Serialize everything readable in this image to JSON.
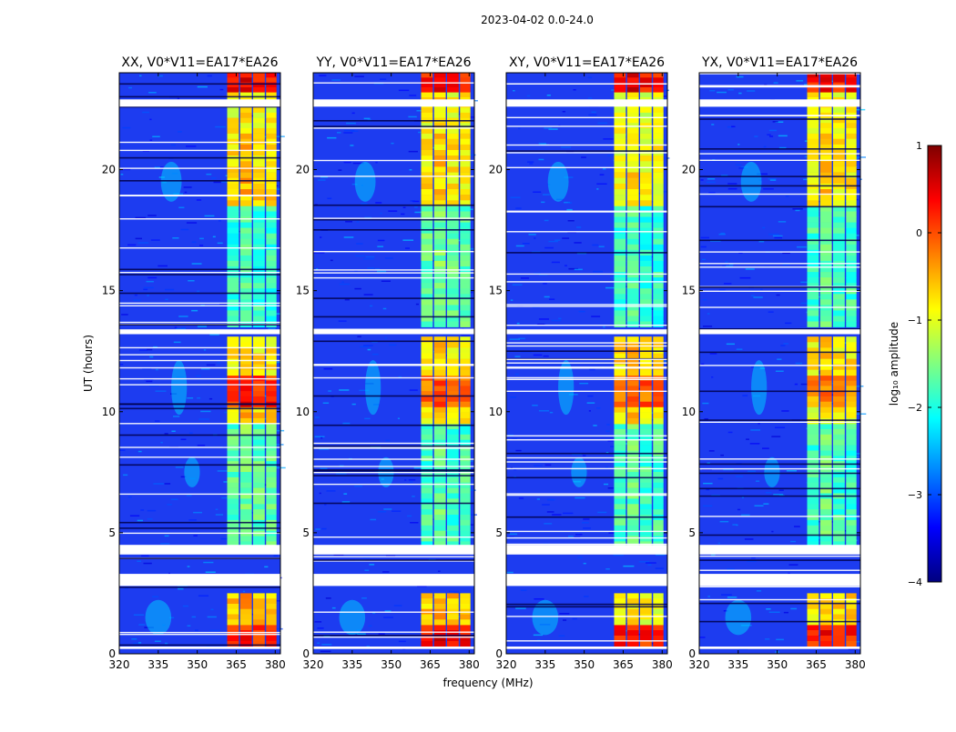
{
  "figure": {
    "suptitle": "2023-04-02 0.0-24.0"
  },
  "chart_data": [
    {
      "type": "heatmap",
      "title": "XX, V0*V11=EA17*EA26",
      "xlabel": "",
      "ylabel": "UT (hours)",
      "xlim": [
        320,
        382
      ],
      "ylim": [
        0,
        24
      ],
      "xticks": [
        320,
        335,
        350,
        365,
        380
      ],
      "yticks": [
        0,
        5,
        10,
        15,
        20
      ],
      "xtick_labels": [
        "320",
        "335",
        "350",
        "365",
        "380"
      ],
      "ytick_labels": [
        "0",
        "5",
        "10",
        "15",
        "20"
      ],
      "bright_bands_mhz": [
        [
          361.5,
          366
        ],
        [
          366.5,
          371
        ],
        [
          371.5,
          376
        ],
        [
          376.5,
          380.5
        ]
      ],
      "band_amplitude_log10": [
        {
          "from": 0.3,
          "to": 1.2,
          "value": 0.1
        },
        {
          "from": 1.2,
          "to": 2.5,
          "value": -0.6
        },
        {
          "from": 4.2,
          "to": 9.5,
          "value": -1.7
        },
        {
          "from": 9.5,
          "to": 10.2,
          "value": -0.7
        },
        {
          "from": 10.2,
          "to": 11.5,
          "value": 0.2
        },
        {
          "from": 11.5,
          "to": 13.1,
          "value": -0.8
        },
        {
          "from": 13.5,
          "to": 18.5,
          "value": -1.9
        },
        {
          "from": 18.5,
          "to": 21.5,
          "value": -0.7
        },
        {
          "from": 21.5,
          "to": 23.2,
          "value": -0.9
        },
        {
          "from": 23.2,
          "to": 24,
          "value": 0.3
        }
      ],
      "flagged_gaps_hours": [
        [
          0.2,
          0.3
        ],
        [
          2.8,
          3.3
        ],
        [
          4.1,
          4.5
        ],
        [
          13.2,
          13.4
        ],
        [
          22.6,
          22.9
        ]
      ]
    },
    {
      "type": "heatmap",
      "title": "YY, V0*V11=EA17*EA26",
      "xlabel": "frequency (MHz)",
      "ylabel": "",
      "xlim": [
        320,
        382
      ],
      "ylim": [
        0,
        24
      ],
      "xticks": [
        320,
        335,
        350,
        365,
        380
      ],
      "yticks": [
        0,
        5,
        10,
        15,
        20
      ],
      "xtick_labels": [
        "320",
        "335",
        "350",
        "365",
        "380"
      ],
      "ytick_labels": [
        "0",
        "5",
        "10",
        "15",
        "20"
      ],
      "bright_bands_mhz": [
        [
          361.5,
          366
        ],
        [
          366.5,
          371
        ],
        [
          371.5,
          376
        ],
        [
          376.5,
          380.5
        ]
      ],
      "band_amplitude_log10": [
        {
          "from": 0.3,
          "to": 1.2,
          "value": 0.3
        },
        {
          "from": 1.2,
          "to": 2.5,
          "value": -0.6
        },
        {
          "from": 4.2,
          "to": 9.5,
          "value": -1.8
        },
        {
          "from": 9.5,
          "to": 10.2,
          "value": -0.8
        },
        {
          "from": 10.2,
          "to": 11.5,
          "value": -0.2
        },
        {
          "from": 11.5,
          "to": 13.1,
          "value": -0.8
        },
        {
          "from": 13.5,
          "to": 18.5,
          "value": -1.7
        },
        {
          "from": 18.5,
          "to": 21.5,
          "value": -0.8
        },
        {
          "from": 21.5,
          "to": 23.2,
          "value": -0.9
        },
        {
          "from": 23.2,
          "to": 24,
          "value": 0.3
        }
      ],
      "flagged_gaps_hours": [
        [
          0.2,
          0.3
        ],
        [
          2.8,
          3.3
        ],
        [
          4.1,
          4.5
        ],
        [
          13.2,
          13.4
        ],
        [
          22.6,
          22.9
        ]
      ]
    },
    {
      "type": "heatmap",
      "title": "XY, V0*V11=EA17*EA26",
      "xlabel": "",
      "ylabel": "",
      "xlim": [
        320,
        382
      ],
      "ylim": [
        0,
        24
      ],
      "xticks": [
        320,
        335,
        350,
        365,
        380
      ],
      "yticks": [
        0,
        5,
        10,
        15,
        20
      ],
      "xtick_labels": [
        "320",
        "335",
        "350",
        "365",
        "380"
      ],
      "ytick_labels": [
        "0",
        "5",
        "10",
        "15",
        "20"
      ],
      "bright_bands_mhz": [
        [
          361.5,
          366
        ],
        [
          366.5,
          371
        ],
        [
          371.5,
          376
        ],
        [
          376.5,
          380.5
        ]
      ],
      "band_amplitude_log10": [
        {
          "from": 0.3,
          "to": 1.2,
          "value": 0.2
        },
        {
          "from": 1.2,
          "to": 2.5,
          "value": -0.9
        },
        {
          "from": 4.2,
          "to": 9.5,
          "value": -1.8
        },
        {
          "from": 9.5,
          "to": 10.2,
          "value": -0.8
        },
        {
          "from": 10.2,
          "to": 11.5,
          "value": -0.1
        },
        {
          "from": 11.5,
          "to": 13.1,
          "value": -0.7
        },
        {
          "from": 13.5,
          "to": 18.5,
          "value": -1.9
        },
        {
          "from": 18.5,
          "to": 21.5,
          "value": -0.9
        },
        {
          "from": 21.5,
          "to": 23.2,
          "value": -1.0
        },
        {
          "from": 23.2,
          "to": 24,
          "value": 0.3
        }
      ],
      "flagged_gaps_hours": [
        [
          0.2,
          0.3
        ],
        [
          2.8,
          3.3
        ],
        [
          4.1,
          4.5
        ],
        [
          13.2,
          13.4
        ],
        [
          22.6,
          22.9
        ]
      ]
    },
    {
      "type": "heatmap",
      "title": "YX, V0*V11=EA17*EA26",
      "xlabel": "",
      "ylabel": "",
      "xlim": [
        320,
        382
      ],
      "ylim": [
        0,
        24
      ],
      "xticks": [
        320,
        335,
        350,
        365,
        380
      ],
      "yticks": [
        0,
        5,
        10,
        15,
        20
      ],
      "xtick_labels": [
        "320",
        "335",
        "350",
        "365",
        "380"
      ],
      "ytick_labels": [
        "0",
        "5",
        "10",
        "15",
        "20"
      ],
      "bright_bands_mhz": [
        [
          361.5,
          366
        ],
        [
          366.5,
          371
        ],
        [
          371.5,
          376
        ],
        [
          376.5,
          380.5
        ]
      ],
      "band_amplitude_log10": [
        {
          "from": 0.3,
          "to": 1.2,
          "value": 0.2
        },
        {
          "from": 1.2,
          "to": 2.5,
          "value": -0.7
        },
        {
          "from": 4.2,
          "to": 9.5,
          "value": -1.8
        },
        {
          "from": 9.5,
          "to": 10.2,
          "value": -0.9
        },
        {
          "from": 10.2,
          "to": 11.5,
          "value": -0.4
        },
        {
          "from": 11.5,
          "to": 13.1,
          "value": -0.8
        },
        {
          "from": 13.5,
          "to": 18.5,
          "value": -1.8
        },
        {
          "from": 18.5,
          "to": 21.5,
          "value": -0.8
        },
        {
          "from": 21.5,
          "to": 23.2,
          "value": -0.9
        },
        {
          "from": 23.2,
          "to": 24,
          "value": 0.3
        }
      ],
      "flagged_gaps_hours": [
        [
          0.2,
          0.3
        ],
        [
          2.8,
          3.3
        ],
        [
          4.1,
          4.5
        ],
        [
          13.2,
          13.4
        ],
        [
          22.6,
          22.9
        ]
      ]
    }
  ],
  "colorbar": {
    "label": "log₁₀ amplitude",
    "vmin": -4,
    "vmax": 1,
    "ticks": [
      1,
      0,
      -1,
      -2,
      -3,
      -4
    ],
    "tick_labels": [
      "1",
      "0",
      "−1",
      "−2",
      "−3",
      "−4"
    ],
    "colormap": [
      "#00007f",
      "#0000ff",
      "#0080ff",
      "#00ffff",
      "#80ff80",
      "#ffff00",
      "#ff8000",
      "#ff0000",
      "#7f0000"
    ]
  }
}
